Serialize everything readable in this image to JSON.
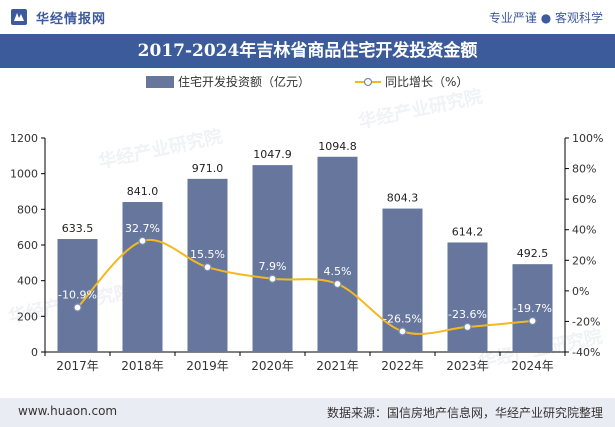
{
  "header": {
    "brand": "华经情报网",
    "slogan": "专业严谨 ● 客观科学"
  },
  "footer": {
    "website": "www.huaon.com",
    "source": "数据来源：国信房地产信息网，华经产业研究院整理"
  },
  "watermark": "华经产业研究院",
  "chart_data": {
    "type": "bar",
    "title": "2017-2024年吉林省商品住宅开发投资金额",
    "categories": [
      "2017年",
      "2018年",
      "2019年",
      "2020年",
      "2021年",
      "2022年",
      "2023年",
      "2024年"
    ],
    "series": [
      {
        "name": "住宅开发投资额（亿元）",
        "type": "bar",
        "axis": "left",
        "color": "#66769c",
        "values": [
          633.5,
          841.0,
          971.0,
          1047.9,
          1094.8,
          804.3,
          614.2,
          492.5
        ],
        "labels": [
          "633.5",
          "841.0",
          "971.0",
          "1047.9",
          "1094.8",
          "804.3",
          "614.2",
          "492.5"
        ]
      },
      {
        "name": "同比增长（%）",
        "type": "line",
        "axis": "right",
        "color": "#f5b91e",
        "values": [
          -10.9,
          32.7,
          15.5,
          7.9,
          4.5,
          -26.5,
          -23.6,
          -19.7
        ],
        "labels": [
          "-10.9%",
          "32.7%",
          "15.5%",
          "7.9%",
          "4.5%",
          "-26.5%",
          "-23.6%",
          "-19.7%"
        ]
      }
    ],
    "y_left": {
      "min": 0,
      "max": 1200,
      "ticks": [
        "0",
        "200",
        "400",
        "600",
        "800",
        "1000",
        "1200"
      ]
    },
    "y_right": {
      "min": -40,
      "max": 100,
      "ticks": [
        "-40%",
        "-20%",
        "0%",
        "20%",
        "40%",
        "60%",
        "80%",
        "100%"
      ]
    },
    "legend_position": "top-center",
    "grid": false
  }
}
